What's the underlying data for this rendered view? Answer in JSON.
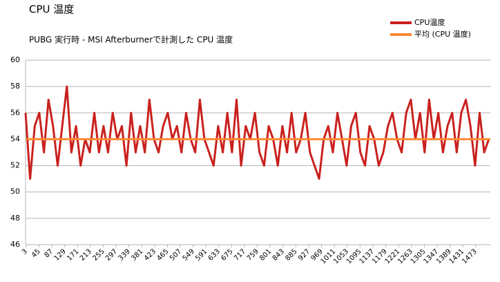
{
  "chart_data": {
    "type": "line",
    "title": "CPU 温度",
    "subtitle": "PUBG 実行時 - MSI Afterburnerで計測した CPU 温度",
    "x": [
      1,
      16,
      31,
      46,
      61,
      76,
      91,
      106,
      121,
      136,
      151,
      166,
      181,
      196,
      211,
      226,
      241,
      256,
      271,
      286,
      301,
      316,
      331,
      346,
      361,
      376,
      391,
      406,
      421,
      436,
      451,
      466,
      481,
      496,
      511,
      526,
      541,
      556,
      571,
      586,
      601,
      616,
      631,
      646,
      661,
      676,
      691,
      706,
      721,
      736,
      751,
      766,
      781,
      796,
      811,
      826,
      841,
      856,
      871,
      886,
      901,
      916,
      931,
      946,
      961,
      976,
      991,
      1006,
      1021,
      1036,
      1051,
      1066,
      1081,
      1096,
      1111,
      1126,
      1141,
      1156,
      1171,
      1186,
      1201,
      1216,
      1231,
      1246,
      1261,
      1276,
      1291,
      1306,
      1321,
      1336,
      1351,
      1366,
      1381,
      1396,
      1411,
      1426,
      1441,
      1456,
      1471,
      1486,
      1501,
      1516
    ],
    "series": [
      {
        "name": "CPU温度",
        "color": "#c9211e",
        "values": [
          56,
          51,
          55,
          56,
          53,
          57,
          55,
          52,
          55,
          58,
          53,
          55,
          52,
          54,
          53,
          56,
          53,
          55,
          53,
          56,
          54,
          55,
          52,
          56,
          53,
          55,
          53,
          57,
          54,
          53,
          55,
          56,
          54,
          55,
          53,
          56,
          54,
          53,
          57,
          54,
          53,
          52,
          55,
          53,
          56,
          53,
          57,
          52,
          55,
          54,
          56,
          53,
          52,
          55,
          54,
          52,
          55,
          53,
          56,
          53,
          54,
          56,
          53,
          52,
          51,
          54,
          55,
          53,
          56,
          54,
          52,
          55,
          56,
          53,
          52,
          55,
          54,
          52,
          53,
          55,
          56,
          54,
          53,
          56,
          57,
          54,
          56,
          53,
          57,
          54,
          56,
          53,
          55,
          56,
          53,
          56,
          57,
          55,
          52,
          56,
          53,
          54
        ]
      },
      {
        "name": "平均 (CPU 温度)",
        "color": "#ff8a32",
        "x": [
          1,
          1521
        ],
        "values": [
          54,
          54
        ]
      }
    ],
    "xlim": [
      1,
      1521
    ],
    "xticks": [
      3,
      45,
      87,
      129,
      171,
      213,
      255,
      297,
      339,
      381,
      423,
      465,
      507,
      549,
      591,
      633,
      675,
      717,
      759,
      801,
      843,
      885,
      927,
      969,
      1011,
      1053,
      1095,
      1137,
      1179,
      1221,
      1263,
      1305,
      1347,
      1389,
      1431,
      1473
    ],
    "ylim": [
      46,
      60
    ],
    "yticks": [
      46,
      48,
      50,
      52,
      54,
      56,
      58,
      60
    ],
    "grid": true,
    "legend": "top-right"
  }
}
